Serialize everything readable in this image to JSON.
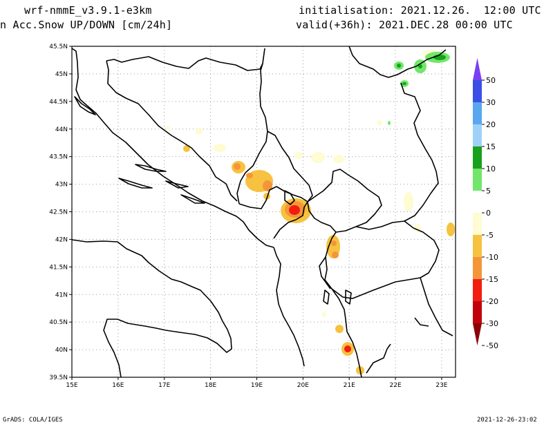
{
  "header": {
    "model": "wrf-nmmE_v3.9.1-e3km",
    "field": "n Acc.Snow UP/DOWN [cm/24h]",
    "init": "initialisation: 2021.12.26.  12:00 UTC",
    "valid": "valid(+36h): 2021.DEC.28 00:00 UTC"
  },
  "footer": {
    "left": "GrADS: COLA/IGES",
    "right": "2021-12-26-23:02"
  },
  "map": {
    "lon_range": [
      15,
      23.3
    ],
    "lat_range": [
      39.5,
      45.5
    ],
    "lon_ticks": [
      "15E",
      "16E",
      "17E",
      "18E",
      "19E",
      "20E",
      "21E",
      "22E",
      "23E"
    ],
    "lat_ticks": [
      "39.5N",
      "40N",
      "40.5N",
      "41N",
      "41.5N",
      "42N",
      "42.5N",
      "43N",
      "43.5N",
      "44N",
      "44.5N",
      "45N",
      "45.5N"
    ]
  },
  "colorbar": {
    "labels": [
      "50",
      "30",
      "20",
      "15",
      "10",
      "5",
      "0",
      "-5",
      "-10",
      "-15",
      "-20",
      "-30",
      "-50"
    ],
    "colors": [
      "#7b3ff2",
      "#3b4fe6",
      "#58a7ef",
      "#9fd1f8",
      "#17a11c",
      "#72e66b",
      "#ffffff",
      "#fefcd0",
      "#f6c23f",
      "#f5953a",
      "#f21d0f",
      "#c2000b",
      "#8d0007"
    ]
  }
}
